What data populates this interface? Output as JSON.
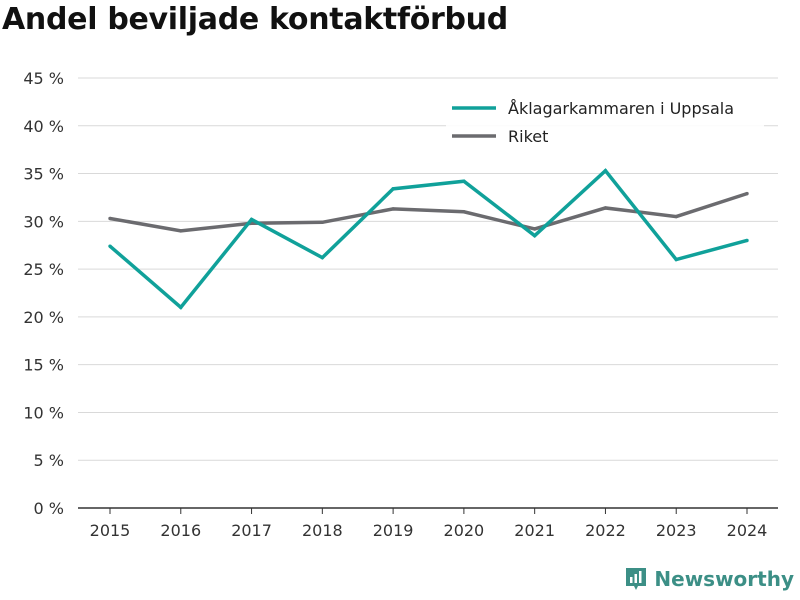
{
  "title": "Andel beviljade kontaktförbud",
  "brand": {
    "name": "Newsworthy",
    "color": "#3c8f86",
    "icon": "newsworthy-logo-icon"
  },
  "chart_data": {
    "type": "line",
    "title": "Andel beviljade kontaktförbud",
    "xlabel": "",
    "ylabel": "",
    "x": [
      "2015",
      "2016",
      "2017",
      "2018",
      "2019",
      "2020",
      "2021",
      "2022",
      "2023",
      "2024"
    ],
    "ylim": [
      0,
      45
    ],
    "yticks": [
      0,
      5,
      10,
      15,
      20,
      25,
      30,
      35,
      40,
      45
    ],
    "ytick_labels": [
      "0 %",
      "5 %",
      "10 %",
      "15 %",
      "20 %",
      "25 %",
      "30 %",
      "35 %",
      "40 %",
      "45 %"
    ],
    "grid": true,
    "legend_position": "top-right",
    "series": [
      {
        "name": "Åklagarkammaren i Uppsala",
        "color": "#10a19a",
        "values": [
          27.4,
          21.0,
          30.2,
          26.2,
          33.4,
          34.2,
          28.5,
          35.3,
          26.0,
          28.0
        ]
      },
      {
        "name": "Riket",
        "color": "#6b6b6f",
        "values": [
          30.3,
          29.0,
          29.8,
          29.9,
          31.3,
          31.0,
          29.2,
          31.4,
          30.5,
          32.9
        ]
      }
    ]
  }
}
